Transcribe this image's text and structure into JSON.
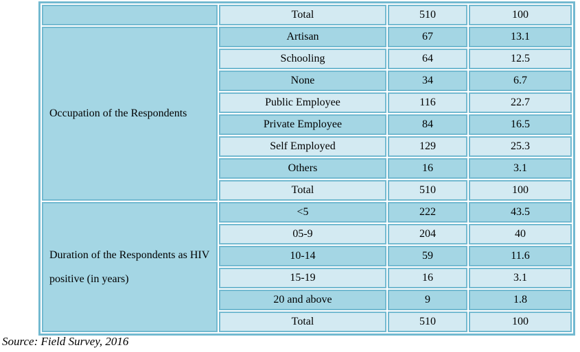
{
  "colors": {
    "border": "#72b9d0",
    "cell_light": "#d3eaf2",
    "cell_medium": "#a4d6e4",
    "text": "#000000",
    "page_background": "#ffffff"
  },
  "table": {
    "columns": [
      "group",
      "category",
      "frequency",
      "percent"
    ],
    "sections": [
      {
        "group_label": "",
        "rows": [
          {
            "label": "Total",
            "frequency": "510",
            "percent": "100"
          }
        ]
      },
      {
        "group_label": "Occupation of the Respondents",
        "rows": [
          {
            "label": "Artisan",
            "frequency": "67",
            "percent": "13.1"
          },
          {
            "label": "Schooling",
            "frequency": "64",
            "percent": "12.5"
          },
          {
            "label": "None",
            "frequency": "34",
            "percent": "6.7"
          },
          {
            "label": "Public Employee",
            "frequency": "116",
            "percent": "22.7"
          },
          {
            "label": "Private Employee",
            "frequency": "84",
            "percent": "16.5"
          },
          {
            "label": "Self Employed",
            "frequency": "129",
            "percent": "25.3"
          },
          {
            "label": "Others",
            "frequency": "16",
            "percent": "3.1"
          },
          {
            "label": "Total",
            "frequency": "510",
            "percent": "100"
          }
        ]
      },
      {
        "group_label": "Duration of the Respondents as HIV positive (in years)",
        "rows": [
          {
            "label": "<5",
            "frequency": "222",
            "percent": "43.5"
          },
          {
            "label": "05-9",
            "frequency": "204",
            "percent": "40"
          },
          {
            "label": "10-14",
            "frequency": "59",
            "percent": "11.6"
          },
          {
            "label": "15-19",
            "frequency": "16",
            "percent": "3.1"
          },
          {
            "label": "20 and above",
            "frequency": "9",
            "percent": "1.8"
          },
          {
            "label": "Total",
            "frequency": "510",
            "percent": "100"
          }
        ]
      }
    ]
  },
  "source_note": "Source: Field Survey, 2016"
}
